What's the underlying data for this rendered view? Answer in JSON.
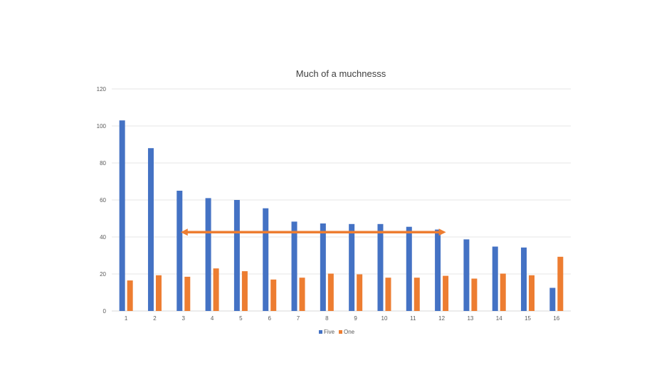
{
  "chart_data": {
    "type": "bar",
    "title": "Much of a muchnesss",
    "xlabel": "",
    "ylabel": "",
    "categories": [
      "1",
      "2",
      "3",
      "4",
      "5",
      "6",
      "7",
      "8",
      "9",
      "10",
      "11",
      "12",
      "13",
      "14",
      "15",
      "16"
    ],
    "series": [
      {
        "name": "Five",
        "color": "#4472C4",
        "values": [
          103,
          88,
          65,
          61,
          60,
          55.5,
          48.3,
          47.3,
          47,
          47,
          45.5,
          44,
          38.7,
          34.8,
          34.3,
          12.5
        ]
      },
      {
        "name": "One",
        "color": "#ED7D31",
        "values": [
          16.5,
          19.3,
          18.5,
          23,
          21.5,
          17,
          18,
          20.2,
          19.8,
          18,
          18,
          19,
          17.5,
          20.2,
          19.3,
          29.3
        ]
      }
    ],
    "ylim": [
      0,
      120
    ],
    "yticks": [
      0,
      20,
      40,
      60,
      80,
      100,
      120
    ],
    "grid": true,
    "legend": "bottom",
    "annotation": {
      "type": "double-arrow",
      "color": "#ED7D31",
      "y": 44.5,
      "from_category": "3",
      "to_category": "12"
    }
  }
}
